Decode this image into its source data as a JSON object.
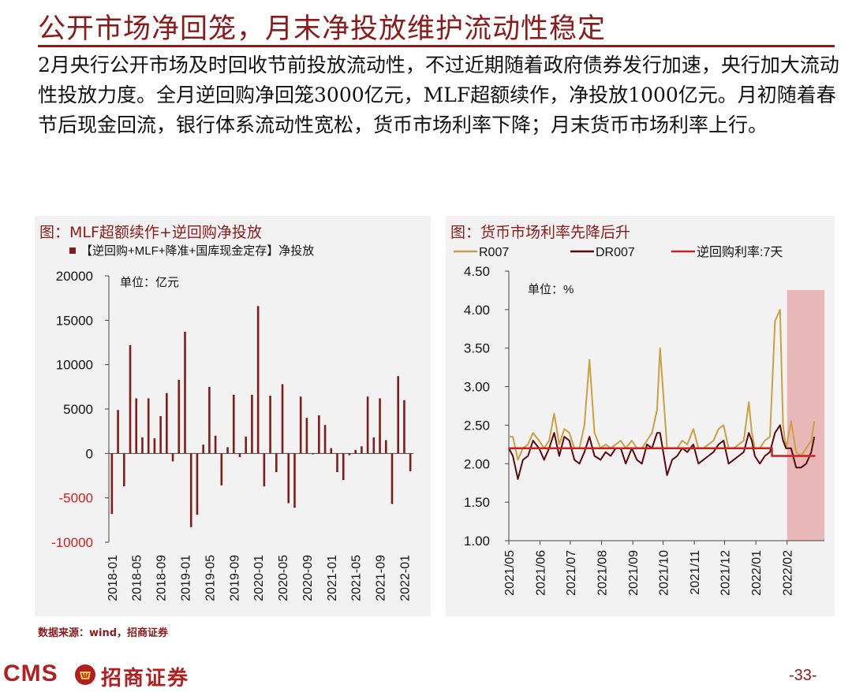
{
  "slide": {
    "title": "公开市场净回笼，月末净投放维护流动性稳定",
    "summary": "2月央行公开市场及时回收节前投放流动性，不过近期随着政府债券发行加速，央行加大流动性投放力度。全月逆回购净回笼3000亿元，MLF超额续作，净投放1000亿元。月初随着春节后现金回流，银行体系流动性宽松，货币市场利率下降；月末货币市场利率上行。",
    "source": "数据来源：wind，招商证券",
    "page_number": "-33-",
    "brand_en": "CMS",
    "brand_cn": "招商证券"
  },
  "colors": {
    "accent": "#8b1a1a",
    "bar": "#7f1d1d",
    "r007": "#c9a042",
    "dr007": "#5a0a0a",
    "reverse_repo_rate": "#cc1f1f",
    "shade": "#e8b7b7",
    "panel_bg": "#f2f2f2"
  },
  "chart_data": [
    {
      "type": "bar",
      "title": "图：MLF超额续作+逆回购净投放",
      "legend": "【逆回购+MLF+降准+国库现金定存】净投放",
      "unit_note": "单位：亿元",
      "ylim": [
        -10000,
        20000
      ],
      "yticks": [
        -10000,
        -5000,
        0,
        5000,
        10000,
        15000,
        20000
      ],
      "tick_labels": [
        "2018-01",
        "2018-05",
        "2018-09",
        "2019-01",
        "2019-05",
        "2019-09",
        "2020-01",
        "2020-05",
        "2020-09",
        "2021-01",
        "2021-05",
        "2021-09",
        "2022-01"
      ],
      "tick_positions": [
        0,
        4,
        8,
        12,
        16,
        20,
        24,
        28,
        32,
        36,
        40,
        44,
        48
      ],
      "categories": [
        "2018-01",
        "2018-02",
        "2018-03",
        "2018-04",
        "2018-05",
        "2018-06",
        "2018-07",
        "2018-08",
        "2018-09",
        "2018-10",
        "2018-11",
        "2018-12",
        "2019-01",
        "2019-02",
        "2019-03",
        "2019-04",
        "2019-05",
        "2019-06",
        "2019-07",
        "2019-08",
        "2019-09",
        "2019-10",
        "2019-11",
        "2019-12",
        "2020-01",
        "2020-02",
        "2020-03",
        "2020-04",
        "2020-05",
        "2020-06",
        "2020-07",
        "2020-08",
        "2020-09",
        "2020-10",
        "2020-11",
        "2020-12",
        "2021-01",
        "2021-02",
        "2021-03",
        "2021-04",
        "2021-05",
        "2021-06",
        "2021-07",
        "2021-08",
        "2021-09",
        "2021-10",
        "2021-11",
        "2021-12",
        "2022-01",
        "2022-02"
      ],
      "values": [
        -6800,
        4900,
        -3700,
        12200,
        6200,
        1800,
        6200,
        1700,
        4200,
        6800,
        -900,
        8300,
        13700,
        -8300,
        -6900,
        1000,
        7500,
        2000,
        -3600,
        700,
        6600,
        -400,
        1900,
        6600,
        16600,
        -3700,
        6500,
        -2100,
        7800,
        -5600,
        -6100,
        6400,
        4000,
        -100,
        4300,
        3200,
        600,
        -2100,
        -3000,
        -200,
        400,
        800,
        6400,
        1800,
        6200,
        1500,
        -5700,
        8700,
        6000,
        -2000
      ]
    },
    {
      "type": "line",
      "title": "图：货币市场利率先降后升",
      "unit_note": "单位：%",
      "ylim": [
        1.0,
        4.5
      ],
      "yticks": [
        "1.00",
        "1.50",
        "2.00",
        "2.50",
        "3.00",
        "3.50",
        "4.00",
        "4.50"
      ],
      "xlim": [
        "2021-05-01",
        "2022-03-10"
      ],
      "tick_labels": [
        "2021/05",
        "2021/06",
        "2021/07",
        "2021/08",
        "2021/09",
        "2021/10",
        "2021/11",
        "2021/12",
        "2022/01",
        "2022/02"
      ],
      "tick_dates": [
        "2021-05-01",
        "2021-06-01",
        "2021-07-01",
        "2021-08-01",
        "2021-09-01",
        "2021-10-01",
        "2021-11-01",
        "2021-12-01",
        "2022-01-01",
        "2022-02-01"
      ],
      "shaded_range": [
        "2022-02-01",
        "2022-03-10"
      ],
      "series": [
        {
          "name": "R007",
          "x": [
            "2021-05-01",
            "2021-05-05",
            "2021-05-10",
            "2021-05-15",
            "2021-05-20",
            "2021-05-25",
            "2021-05-31",
            "2021-06-05",
            "2021-06-10",
            "2021-06-15",
            "2021-06-20",
            "2021-06-25",
            "2021-06-30",
            "2021-07-05",
            "2021-07-10",
            "2021-07-15",
            "2021-07-20",
            "2021-07-25",
            "2021-07-31",
            "2021-08-05",
            "2021-08-10",
            "2021-08-15",
            "2021-08-20",
            "2021-08-25",
            "2021-08-31",
            "2021-09-05",
            "2021-09-10",
            "2021-09-15",
            "2021-09-20",
            "2021-09-25",
            "2021-09-28",
            "2021-10-05",
            "2021-10-10",
            "2021-10-15",
            "2021-10-20",
            "2021-10-25",
            "2021-10-31",
            "2021-11-05",
            "2021-11-10",
            "2021-11-15",
            "2021-11-20",
            "2021-11-25",
            "2021-11-30",
            "2021-12-05",
            "2021-12-10",
            "2021-12-15",
            "2021-12-20",
            "2021-12-25",
            "2021-12-28",
            "2021-12-31",
            "2022-01-05",
            "2022-01-10",
            "2022-01-15",
            "2022-01-20",
            "2022-01-25",
            "2022-01-28",
            "2022-01-31",
            "2022-02-05",
            "2022-02-10",
            "2022-02-15",
            "2022-02-20",
            "2022-02-25",
            "2022-02-28"
          ],
          "values": [
            2.35,
            2.35,
            2.05,
            2.2,
            2.25,
            2.4,
            2.3,
            2.2,
            2.3,
            2.65,
            2.25,
            2.45,
            2.4,
            2.2,
            2.2,
            2.5,
            3.35,
            2.4,
            2.2,
            2.25,
            2.2,
            2.25,
            2.3,
            2.2,
            2.3,
            2.2,
            2.2,
            2.3,
            2.4,
            2.7,
            3.5,
            2.2,
            2.2,
            2.2,
            2.3,
            2.25,
            2.45,
            2.2,
            2.2,
            2.25,
            2.3,
            2.45,
            2.5,
            2.2,
            2.2,
            2.25,
            2.3,
            2.8,
            2.4,
            2.2,
            2.2,
            2.3,
            2.35,
            3.85,
            4.0,
            2.5,
            2.2,
            2.55,
            2.15,
            2.1,
            2.2,
            2.3,
            2.55
          ]
        },
        {
          "name": "DR007",
          "x": [
            "2021-05-01",
            "2021-05-05",
            "2021-05-10",
            "2021-05-15",
            "2021-05-20",
            "2021-05-25",
            "2021-05-31",
            "2021-06-05",
            "2021-06-10",
            "2021-06-15",
            "2021-06-20",
            "2021-06-25",
            "2021-06-30",
            "2021-07-05",
            "2021-07-10",
            "2021-07-15",
            "2021-07-20",
            "2021-07-25",
            "2021-07-31",
            "2021-08-05",
            "2021-08-10",
            "2021-08-15",
            "2021-08-20",
            "2021-08-25",
            "2021-08-31",
            "2021-09-05",
            "2021-09-10",
            "2021-09-15",
            "2021-09-20",
            "2021-09-25",
            "2021-09-28",
            "2021-10-05",
            "2021-10-10",
            "2021-10-15",
            "2021-10-20",
            "2021-10-25",
            "2021-10-31",
            "2021-11-05",
            "2021-11-10",
            "2021-11-15",
            "2021-11-20",
            "2021-11-25",
            "2021-11-30",
            "2021-12-05",
            "2021-12-10",
            "2021-12-15",
            "2021-12-20",
            "2021-12-25",
            "2021-12-28",
            "2021-12-31",
            "2022-01-05",
            "2022-01-10",
            "2022-01-15",
            "2022-01-20",
            "2022-01-25",
            "2022-01-28",
            "2022-01-31",
            "2022-02-05",
            "2022-02-10",
            "2022-02-15",
            "2022-02-20",
            "2022-02-25",
            "2022-02-28"
          ],
          "values": [
            2.2,
            2.1,
            1.8,
            2.05,
            2.1,
            2.3,
            2.2,
            2.05,
            2.2,
            2.4,
            2.1,
            2.35,
            2.3,
            2.05,
            2.0,
            2.15,
            2.35,
            2.1,
            2.05,
            2.15,
            2.1,
            2.2,
            2.2,
            2.0,
            2.2,
            2.05,
            2.0,
            2.25,
            2.2,
            2.4,
            2.4,
            1.85,
            2.05,
            2.1,
            2.2,
            2.15,
            2.25,
            2.0,
            2.05,
            2.1,
            2.15,
            2.25,
            2.3,
            2.0,
            2.05,
            2.1,
            2.15,
            2.4,
            2.3,
            2.1,
            2.0,
            2.1,
            2.15,
            2.4,
            2.5,
            2.3,
            2.2,
            2.2,
            1.95,
            1.95,
            2.0,
            2.15,
            2.35
          ]
        },
        {
          "name": "逆回购利率:7天",
          "x": [
            "2021-05-01",
            "2021-12-31",
            "2022-01-17",
            "2022-03-01"
          ],
          "values": [
            2.2,
            2.2,
            2.1,
            2.1
          ],
          "step": true
        }
      ]
    }
  ]
}
